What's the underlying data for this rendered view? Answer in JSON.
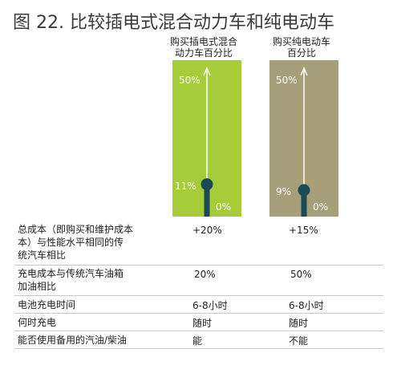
{
  "title": "图 22. 比较插电式混合动力车和纯电动车",
  "colors": {
    "phev_bar": "#a6cc3a",
    "bev_bar": "#a79f79",
    "marker": "#1b4a57",
    "arrow": "#ffffff"
  },
  "chart_data": {
    "type": "bar",
    "categories": [
      "购买插电式混合动力车百分比",
      "购买纯电动车百分比"
    ],
    "values": [
      11,
      9
    ],
    "ylim": [
      0,
      50
    ],
    "tick_labels": {
      "top": "50%",
      "bottom": "0%"
    },
    "value_labels": [
      "11%",
      "9%"
    ],
    "headers": [
      "购买插电式混合\n动力车百分比",
      "购买纯电动车\n百分比"
    ]
  },
  "table": {
    "rows": [
      {
        "label": "总成本（即购买和维护成本\n本）与性能水平相同的传\n统汽车相比",
        "phev": "+20%",
        "bev": "+15%"
      },
      {
        "label": "充电成本与传统汽车油箱\n加油相比",
        "phev": "20%",
        "bev": "50%"
      },
      {
        "label": "电池充电时间",
        "phev": "6-8小时",
        "bev": "6-8小时"
      },
      {
        "label": "何时充电",
        "phev": "随时",
        "bev": "随时"
      },
      {
        "label": "能否使用备用的汽油/柴油",
        "phev": "能",
        "bev": "不能"
      }
    ]
  }
}
